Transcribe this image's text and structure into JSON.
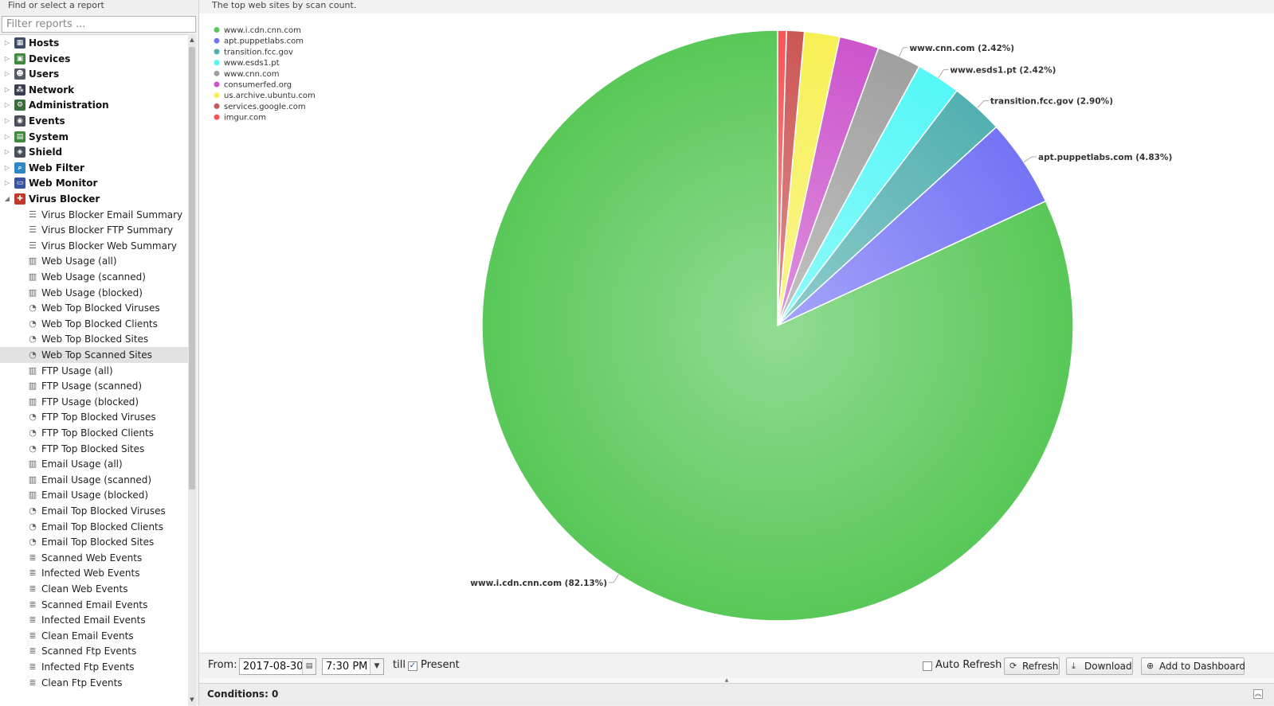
{
  "sidebar": {
    "title": "Find or select a report",
    "filter_placeholder": "Filter reports ...",
    "categories": [
      {
        "label": "Hosts",
        "icon": "hosts-icon",
        "color": "#3f4b66",
        "expanded": false
      },
      {
        "label": "Devices",
        "icon": "devices-icon",
        "color": "#3f8a3c",
        "expanded": false
      },
      {
        "label": "Users",
        "icon": "users-icon",
        "color": "#555a66",
        "expanded": false
      },
      {
        "label": "Network",
        "icon": "network-icon",
        "color": "#3a3f52",
        "expanded": false
      },
      {
        "label": "Administration",
        "icon": "administration-icon",
        "color": "#3c6e3c",
        "expanded": false
      },
      {
        "label": "Events",
        "icon": "events-icon",
        "color": "#4a4f5c",
        "expanded": false
      },
      {
        "label": "System",
        "icon": "system-icon",
        "color": "#3f8a3c",
        "expanded": false
      },
      {
        "label": "Shield",
        "icon": "shield-icon",
        "color": "#4a4f5c",
        "expanded": false
      },
      {
        "label": "Web Filter",
        "icon": "web-filter-icon",
        "color": "#2f86c4",
        "expanded": false
      },
      {
        "label": "Web Monitor",
        "icon": "web-monitor-icon",
        "color": "#3a55a0",
        "expanded": false
      },
      {
        "label": "Virus Blocker",
        "icon": "virus-blocker-icon",
        "color": "#c0392b",
        "expanded": true
      }
    ],
    "reports": [
      {
        "label": "Virus Blocker Email Summary",
        "type": "text"
      },
      {
        "label": "Virus Blocker FTP Summary",
        "type": "text"
      },
      {
        "label": "Virus Blocker Web Summary",
        "type": "text"
      },
      {
        "label": "Web Usage (all)",
        "type": "timechart"
      },
      {
        "label": "Web Usage (scanned)",
        "type": "timechart"
      },
      {
        "label": "Web Usage (blocked)",
        "type": "timechart"
      },
      {
        "label": "Web Top Blocked Viruses",
        "type": "pie"
      },
      {
        "label": "Web Top Blocked Clients",
        "type": "pie"
      },
      {
        "label": "Web Top Blocked Sites",
        "type": "pie"
      },
      {
        "label": "Web Top Scanned Sites",
        "type": "pie",
        "selected": true
      },
      {
        "label": "FTP Usage (all)",
        "type": "timechart"
      },
      {
        "label": "FTP Usage (scanned)",
        "type": "timechart"
      },
      {
        "label": "FTP Usage (blocked)",
        "type": "timechart"
      },
      {
        "label": "FTP Top Blocked Viruses",
        "type": "pie"
      },
      {
        "label": "FTP Top Blocked Clients",
        "type": "pie"
      },
      {
        "label": "FTP Top Blocked Sites",
        "type": "pie"
      },
      {
        "label": "Email Usage (all)",
        "type": "timechart"
      },
      {
        "label": "Email Usage (scanned)",
        "type": "timechart"
      },
      {
        "label": "Email Usage (blocked)",
        "type": "timechart"
      },
      {
        "label": "Email Top Blocked Viruses",
        "type": "pie"
      },
      {
        "label": "Email Top Blocked Clients",
        "type": "pie"
      },
      {
        "label": "Email Top Blocked Sites",
        "type": "pie"
      },
      {
        "label": "Scanned Web Events",
        "type": "events"
      },
      {
        "label": "Infected Web Events",
        "type": "events"
      },
      {
        "label": "Clean Web Events",
        "type": "events"
      },
      {
        "label": "Scanned Email Events",
        "type": "events"
      },
      {
        "label": "Infected Email Events",
        "type": "events"
      },
      {
        "label": "Clean Email Events",
        "type": "events"
      },
      {
        "label": "Scanned Ftp Events",
        "type": "events"
      },
      {
        "label": "Infected Ftp Events",
        "type": "events"
      },
      {
        "label": "Clean Ftp Events",
        "type": "events"
      }
    ]
  },
  "report": {
    "description": "The top web sites by scan count."
  },
  "chart_data": {
    "type": "pie",
    "title": "",
    "legend_position": "top-left",
    "slices": [
      {
        "name": "www.i.cdn.cnn.com",
        "value": 82.13,
        "color": "#58c858",
        "label": "www.i.cdn.cnn.com (82.13%)"
      },
      {
        "name": "apt.puppetlabs.com",
        "value": 4.83,
        "color": "#7474f5",
        "label": "apt.puppetlabs.com (4.83%)"
      },
      {
        "name": "transition.fcc.gov",
        "value": 2.9,
        "color": "#52b0b0",
        "label": "transition.fcc.gov (2.90%)"
      },
      {
        "name": "www.esds1.pt",
        "value": 2.42,
        "color": "#55f7f7",
        "label": "www.esds1.pt (2.42%)"
      },
      {
        "name": "www.cnn.com",
        "value": 2.42,
        "color": "#a0a0a0",
        "label": "www.cnn.com (2.42%)"
      },
      {
        "name": "consumerfed.org",
        "value": 2.17,
        "color": "#cc55cc",
        "label": ""
      },
      {
        "name": "us.archive.ubuntu.com",
        "value": 1.93,
        "color": "#f7f055",
        "label": ""
      },
      {
        "name": "services.google.com",
        "value": 0.97,
        "color": "#cc5555",
        "label": ""
      },
      {
        "name": "imgur.com",
        "value": 0.48,
        "color": "#f75555",
        "label": ""
      }
    ]
  },
  "toolbar": {
    "from_label": "From:",
    "from_date": "2017-08-30",
    "from_time": "7:30 PM",
    "till_label": "till",
    "present_label": "Present",
    "present_checked": true,
    "auto_refresh_label": "Auto Refresh",
    "auto_refresh_checked": false,
    "refresh_label": "Refresh",
    "download_label": "Download",
    "add_dashboard_label": "Add to Dashboard"
  },
  "conditions": {
    "label": "Conditions: 0"
  }
}
